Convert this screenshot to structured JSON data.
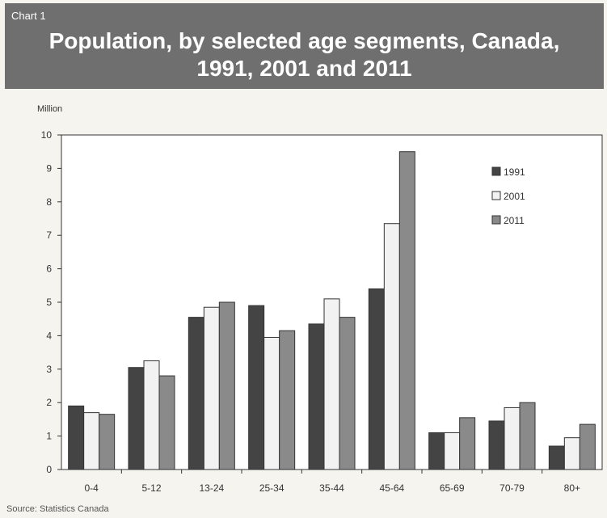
{
  "chart_number": "Chart 1",
  "title_lines": [
    "Population, by selected age segments, Canada,",
    "1991, 2001 and 2011"
  ],
  "source": "Source: Statistics Canada",
  "colors": {
    "1991": "#444444",
    "2001": "#f2f2f2",
    "2011": "#8a8a8a",
    "header_bg": "#6f6f6f"
  },
  "chart_data": {
    "type": "bar",
    "title": "Population, by selected age segments, Canada, 1991, 2001 and 2011",
    "ylabel": "Million",
    "xlabel": "",
    "ylim": [
      0,
      10
    ],
    "yticks": [
      0,
      1,
      2,
      3,
      4,
      5,
      6,
      7,
      8,
      9,
      10
    ],
    "categories": [
      "0-4",
      "5-12",
      "13-24",
      "25-34",
      "35-44",
      "45-64",
      "65-69",
      "70-79",
      "80+"
    ],
    "series": [
      {
        "name": "1991",
        "values": [
          1.9,
          3.05,
          4.55,
          4.9,
          4.35,
          5.4,
          1.1,
          1.45,
          0.7
        ]
      },
      {
        "name": "2001",
        "values": [
          1.7,
          3.25,
          4.85,
          3.95,
          5.1,
          7.35,
          1.1,
          1.85,
          0.95
        ]
      },
      {
        "name": "2011",
        "values": [
          1.65,
          2.8,
          5.0,
          4.15,
          4.55,
          9.5,
          1.55,
          2.0,
          1.35
        ]
      }
    ],
    "legend_position": "top-right",
    "grid": false
  }
}
